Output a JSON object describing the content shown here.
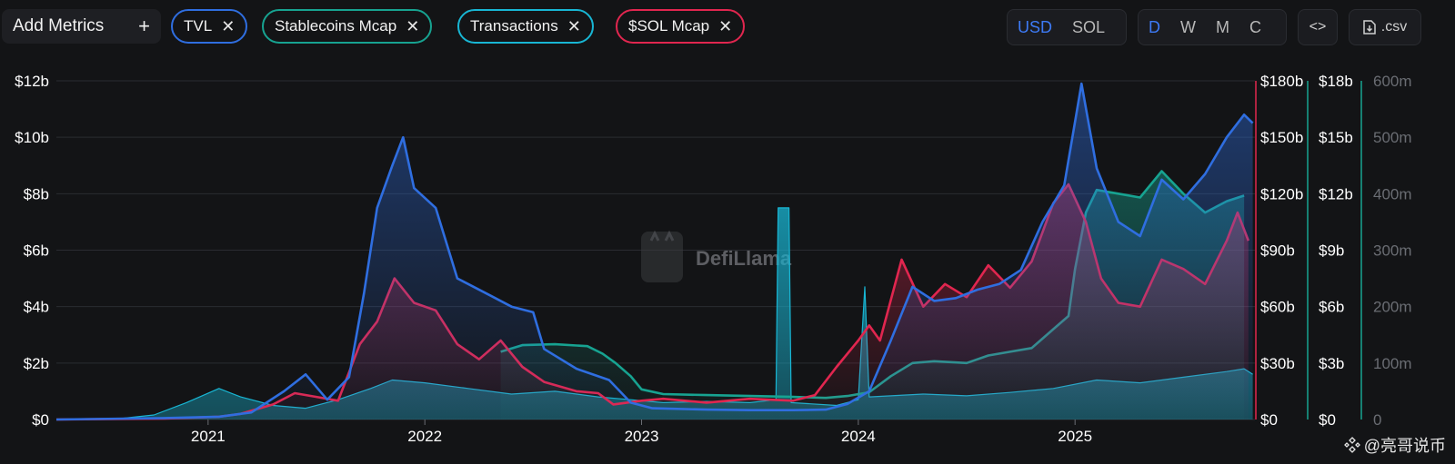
{
  "toolbar": {
    "add_metrics_label": "Add Metrics",
    "add_icon": "plus-icon",
    "close_icon": "close-icon",
    "pills": [
      {
        "label": "TVL",
        "color": "#2f6ee0"
      },
      {
        "label": "Stablecoins Mcap",
        "color": "#17a391"
      },
      {
        "label": "Transactions",
        "color": "#18b6d4"
      },
      {
        "label": "$SOL Mcap",
        "color": "#e1264f"
      }
    ],
    "currency": {
      "options": [
        "USD",
        "SOL"
      ],
      "selected": "USD"
    },
    "period": {
      "options": [
        "D",
        "W",
        "M",
        "C"
      ],
      "selected": "D"
    },
    "embed_label": "<>",
    "csv_label": ".csv",
    "csv_icon": "file-download-icon"
  },
  "watermark": {
    "text": "DefiLlama",
    "icon": "llama-logo-icon"
  },
  "footer_watermark": {
    "text": "@亮哥说币",
    "icon": "binance-logo-icon"
  },
  "chart_data": {
    "type": "line",
    "x_ticks": [
      "2021",
      "2022",
      "2023",
      "2024",
      "2025"
    ],
    "axes": {
      "left": {
        "series": "TVL",
        "ticks": [
          "$0",
          "$2b",
          "$4b",
          "$6b",
          "$8b",
          "$10b",
          "$12b"
        ],
        "max": 12
      },
      "right1": {
        "series": "$SOL Mcap",
        "ticks": [
          "$0",
          "$30b",
          "$60b",
          "$90b",
          "$120b",
          "$150b",
          "$180b"
        ],
        "max": 180
      },
      "right2": {
        "series": "Stablecoins Mcap",
        "ticks": [
          "$0",
          "$3b",
          "$6b",
          "$9b",
          "$12b",
          "$15b",
          "$18b"
        ],
        "max": 18
      },
      "right3": {
        "series": "Transactions",
        "ticks": [
          "0",
          "100m",
          "200m",
          "300m",
          "400m",
          "500m",
          "600m"
        ],
        "max": 600
      }
    },
    "series": [
      {
        "name": "Transactions",
        "axis": "right3",
        "color": "#18b6d4",
        "points": [
          [
            2020.55,
            0
          ],
          [
            2020.75,
            8
          ],
          [
            2020.9,
            30
          ],
          [
            2021.05,
            55
          ],
          [
            2021.15,
            40
          ],
          [
            2021.3,
            25
          ],
          [
            2021.45,
            20
          ],
          [
            2021.6,
            35
          ],
          [
            2021.75,
            55
          ],
          [
            2021.85,
            70
          ],
          [
            2022.0,
            65
          ],
          [
            2022.2,
            55
          ],
          [
            2022.4,
            45
          ],
          [
            2022.6,
            50
          ],
          [
            2022.8,
            40
          ],
          [
            2022.95,
            35
          ],
          [
            2023.1,
            30
          ],
          [
            2023.3,
            32
          ],
          [
            2023.5,
            30
          ],
          [
            2023.62,
            35
          ],
          [
            2023.63,
            375
          ],
          [
            2023.68,
            375
          ],
          [
            2023.69,
            30
          ],
          [
            2023.9,
            25
          ],
          [
            2024.0,
            35
          ],
          [
            2024.03,
            235
          ],
          [
            2024.05,
            40
          ],
          [
            2024.3,
            45
          ],
          [
            2024.5,
            42
          ],
          [
            2024.7,
            48
          ],
          [
            2024.9,
            55
          ],
          [
            2025.1,
            70
          ],
          [
            2025.3,
            65
          ],
          [
            2025.5,
            75
          ],
          [
            2025.7,
            85
          ],
          [
            2025.78,
            90
          ],
          [
            2025.82,
            80
          ]
        ]
      },
      {
        "name": "Stablecoins Mcap",
        "axis": "right2",
        "color": "#17a391",
        "points": [
          [
            2022.35,
            3.6
          ],
          [
            2022.45,
            3.95
          ],
          [
            2022.6,
            4.0
          ],
          [
            2022.75,
            3.9
          ],
          [
            2022.82,
            3.5
          ],
          [
            2022.88,
            3.0
          ],
          [
            2022.95,
            2.3
          ],
          [
            2023.0,
            1.6
          ],
          [
            2023.1,
            1.35
          ],
          [
            2023.3,
            1.3
          ],
          [
            2023.5,
            1.25
          ],
          [
            2023.7,
            1.2
          ],
          [
            2023.85,
            1.15
          ],
          [
            2023.95,
            1.25
          ],
          [
            2024.05,
            1.45
          ],
          [
            2024.15,
            2.3
          ],
          [
            2024.25,
            3.0
          ],
          [
            2024.35,
            3.1
          ],
          [
            2024.5,
            3.0
          ],
          [
            2024.6,
            3.4
          ],
          [
            2024.7,
            3.6
          ],
          [
            2024.8,
            3.8
          ],
          [
            2024.9,
            4.8
          ],
          [
            2024.97,
            5.5
          ],
          [
            2025.0,
            8.0
          ],
          [
            2025.05,
            11.0
          ],
          [
            2025.1,
            12.2
          ],
          [
            2025.2,
            12.0
          ],
          [
            2025.3,
            11.8
          ],
          [
            2025.4,
            13.2
          ],
          [
            2025.5,
            12.0
          ],
          [
            2025.6,
            11.0
          ],
          [
            2025.7,
            11.6
          ],
          [
            2025.78,
            11.9
          ]
        ]
      },
      {
        "name": "$SOL Mcap",
        "axis": "right1",
        "color": "#e1264f",
        "points": [
          [
            2020.3,
            0
          ],
          [
            2020.8,
            0.5
          ],
          [
            2021.05,
            1.5
          ],
          [
            2021.15,
            3
          ],
          [
            2021.3,
            8
          ],
          [
            2021.4,
            14
          ],
          [
            2021.5,
            12
          ],
          [
            2021.6,
            10
          ],
          [
            2021.7,
            40
          ],
          [
            2021.78,
            52
          ],
          [
            2021.86,
            75
          ],
          [
            2021.95,
            62
          ],
          [
            2022.05,
            58
          ],
          [
            2022.15,
            40
          ],
          [
            2022.25,
            32
          ],
          [
            2022.35,
            42
          ],
          [
            2022.45,
            28
          ],
          [
            2022.55,
            20
          ],
          [
            2022.7,
            15
          ],
          [
            2022.8,
            14
          ],
          [
            2022.87,
            8
          ],
          [
            2023.0,
            10
          ],
          [
            2023.1,
            11
          ],
          [
            2023.3,
            9
          ],
          [
            2023.5,
            11
          ],
          [
            2023.7,
            10
          ],
          [
            2023.8,
            13
          ],
          [
            2023.9,
            28
          ],
          [
            2024.0,
            42
          ],
          [
            2024.05,
            50
          ],
          [
            2024.1,
            42
          ],
          [
            2024.2,
            85
          ],
          [
            2024.3,
            60
          ],
          [
            2024.4,
            72
          ],
          [
            2024.5,
            65
          ],
          [
            2024.6,
            82
          ],
          [
            2024.7,
            70
          ],
          [
            2024.8,
            84
          ],
          [
            2024.9,
            115
          ],
          [
            2024.97,
            125
          ],
          [
            2025.05,
            105
          ],
          [
            2025.12,
            75
          ],
          [
            2025.2,
            62
          ],
          [
            2025.3,
            60
          ],
          [
            2025.4,
            85
          ],
          [
            2025.5,
            80
          ],
          [
            2025.6,
            72
          ],
          [
            2025.7,
            95
          ],
          [
            2025.75,
            110
          ],
          [
            2025.8,
            95
          ]
        ]
      },
      {
        "name": "TVL",
        "axis": "left",
        "color": "#2f6ee0",
        "points": [
          [
            2020.3,
            0
          ],
          [
            2020.8,
            0.05
          ],
          [
            2021.05,
            0.1
          ],
          [
            2021.2,
            0.25
          ],
          [
            2021.35,
            1.0
          ],
          [
            2021.45,
            1.6
          ],
          [
            2021.55,
            0.7
          ],
          [
            2021.65,
            1.5
          ],
          [
            2021.72,
            4.5
          ],
          [
            2021.78,
            7.5
          ],
          [
            2021.85,
            9.0
          ],
          [
            2021.9,
            10.0
          ],
          [
            2021.95,
            8.2
          ],
          [
            2022.05,
            7.5
          ],
          [
            2022.15,
            5.0
          ],
          [
            2022.3,
            4.4
          ],
          [
            2022.4,
            4.0
          ],
          [
            2022.5,
            3.8
          ],
          [
            2022.55,
            2.5
          ],
          [
            2022.7,
            1.8
          ],
          [
            2022.85,
            1.4
          ],
          [
            2022.95,
            0.6
          ],
          [
            2023.05,
            0.4
          ],
          [
            2023.3,
            0.35
          ],
          [
            2023.5,
            0.33
          ],
          [
            2023.7,
            0.33
          ],
          [
            2023.85,
            0.35
          ],
          [
            2023.95,
            0.55
          ],
          [
            2024.05,
            1.0
          ],
          [
            2024.15,
            2.8
          ],
          [
            2024.25,
            4.7
          ],
          [
            2024.35,
            4.2
          ],
          [
            2024.45,
            4.3
          ],
          [
            2024.55,
            4.6
          ],
          [
            2024.65,
            4.8
          ],
          [
            2024.75,
            5.3
          ],
          [
            2024.85,
            7.0
          ],
          [
            2024.95,
            8.3
          ],
          [
            2025.03,
            11.9
          ],
          [
            2025.1,
            8.9
          ],
          [
            2025.2,
            7.0
          ],
          [
            2025.3,
            6.5
          ],
          [
            2025.4,
            8.5
          ],
          [
            2025.5,
            7.8
          ],
          [
            2025.6,
            8.7
          ],
          [
            2025.7,
            10.0
          ],
          [
            2025.78,
            10.8
          ],
          [
            2025.82,
            10.5
          ]
        ]
      }
    ]
  }
}
